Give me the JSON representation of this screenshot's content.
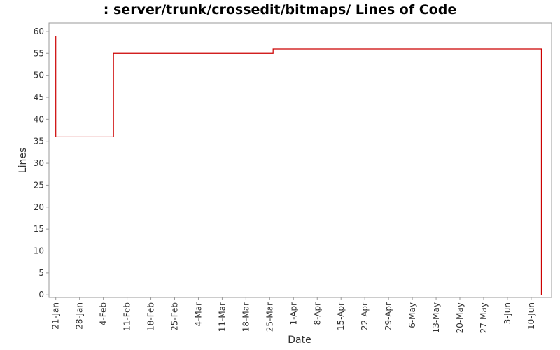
{
  "chart_data": {
    "type": "line",
    "step": "post",
    "title": ": server/trunk/crossedit/bitmaps/ Lines of Code",
    "x_label": "Date",
    "y_label": "Lines",
    "x": [
      "21-Jan",
      "21-Jan",
      "7-Feb",
      "26-Mar",
      "13-Jun"
    ],
    "series": [
      {
        "name": "Lines",
        "color": "#cc0000",
        "values": [
          59,
          36,
          55,
          56,
          0
        ]
      }
    ],
    "xlim": [
      "19-Jan",
      "16-Jun"
    ],
    "xticks": [
      "21-Jan",
      "28-Jan",
      "4-Feb",
      "11-Feb",
      "18-Feb",
      "25-Feb",
      "4-Mar",
      "11-Mar",
      "18-Mar",
      "25-Mar",
      "1-Apr",
      "8-Apr",
      "15-Apr",
      "22-Apr",
      "29-Apr",
      "6-May",
      "13-May",
      "20-May",
      "27-May",
      "3-Jun",
      "10-Jun"
    ],
    "ylim": [
      -0.6,
      61.9
    ],
    "yticks": [
      0,
      5,
      10,
      15,
      20,
      25,
      30,
      35,
      40,
      45,
      50,
      55,
      60
    ],
    "grid": false
  }
}
